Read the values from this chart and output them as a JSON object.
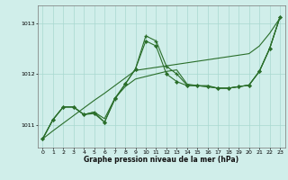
{
  "xlabel": "Graphe pression niveau de la mer (hPa)",
  "xlim": [
    -0.5,
    23.5
  ],
  "ylim": [
    1010.55,
    1013.35
  ],
  "yticks": [
    1011,
    1012,
    1013
  ],
  "xticks": [
    0,
    1,
    2,
    3,
    4,
    5,
    6,
    7,
    8,
    9,
    10,
    11,
    12,
    13,
    14,
    15,
    16,
    17,
    18,
    19,
    20,
    21,
    22,
    23
  ],
  "bg_color": "#d0eeea",
  "grid_color": "#a8d8d0",
  "line_color": "#2a6e2a",
  "straight_line": [
    1010.72,
    1010.88,
    1011.03,
    1011.18,
    1011.33,
    1011.48,
    1011.62,
    1011.77,
    1011.92,
    1012.07,
    1012.1,
    1012.13,
    1012.16,
    1012.19,
    1012.22,
    1012.25,
    1012.28,
    1012.31,
    1012.34,
    1012.37,
    1012.4,
    1012.55,
    1012.8,
    1013.1
  ],
  "jagged_plus_x": [
    0,
    1,
    2,
    3,
    4,
    5,
    6,
    7,
    8,
    9,
    10,
    11,
    12,
    13,
    14,
    15,
    16,
    17,
    18,
    19,
    20,
    21,
    22,
    23
  ],
  "jagged_plus_y": [
    1010.72,
    1011.1,
    1011.35,
    1011.35,
    1011.2,
    1011.25,
    1011.05,
    1011.5,
    1011.8,
    1012.1,
    1012.75,
    1012.65,
    1012.15,
    1012.0,
    1011.78,
    1011.77,
    1011.75,
    1011.72,
    1011.72,
    1011.75,
    1011.78,
    1012.05,
    1012.5,
    1013.12
  ],
  "jagged_dia_x": [
    0,
    1,
    2,
    3,
    4,
    5,
    6,
    7,
    8,
    9,
    10,
    11,
    12,
    13,
    14,
    15,
    16,
    17,
    18,
    19,
    20,
    21,
    22,
    23
  ],
  "jagged_dia_y": [
    1010.72,
    1011.1,
    1011.35,
    1011.35,
    1011.2,
    1011.22,
    1011.05,
    1011.52,
    1011.8,
    1012.1,
    1012.65,
    1012.55,
    1012.0,
    1011.85,
    1011.77,
    1011.77,
    1011.75,
    1011.72,
    1011.72,
    1011.75,
    1011.78,
    1012.05,
    1012.5,
    1013.12
  ],
  "flat_line": [
    1010.72,
    1011.1,
    1011.35,
    1011.35,
    1011.2,
    1011.25,
    1011.12,
    1011.52,
    1011.75,
    1011.9,
    1011.95,
    1012.0,
    1012.05,
    1012.08,
    1011.8,
    1011.77,
    1011.77,
    1011.72,
    1011.72,
    1011.75,
    1011.78,
    1012.05,
    1012.5,
    1013.12
  ]
}
